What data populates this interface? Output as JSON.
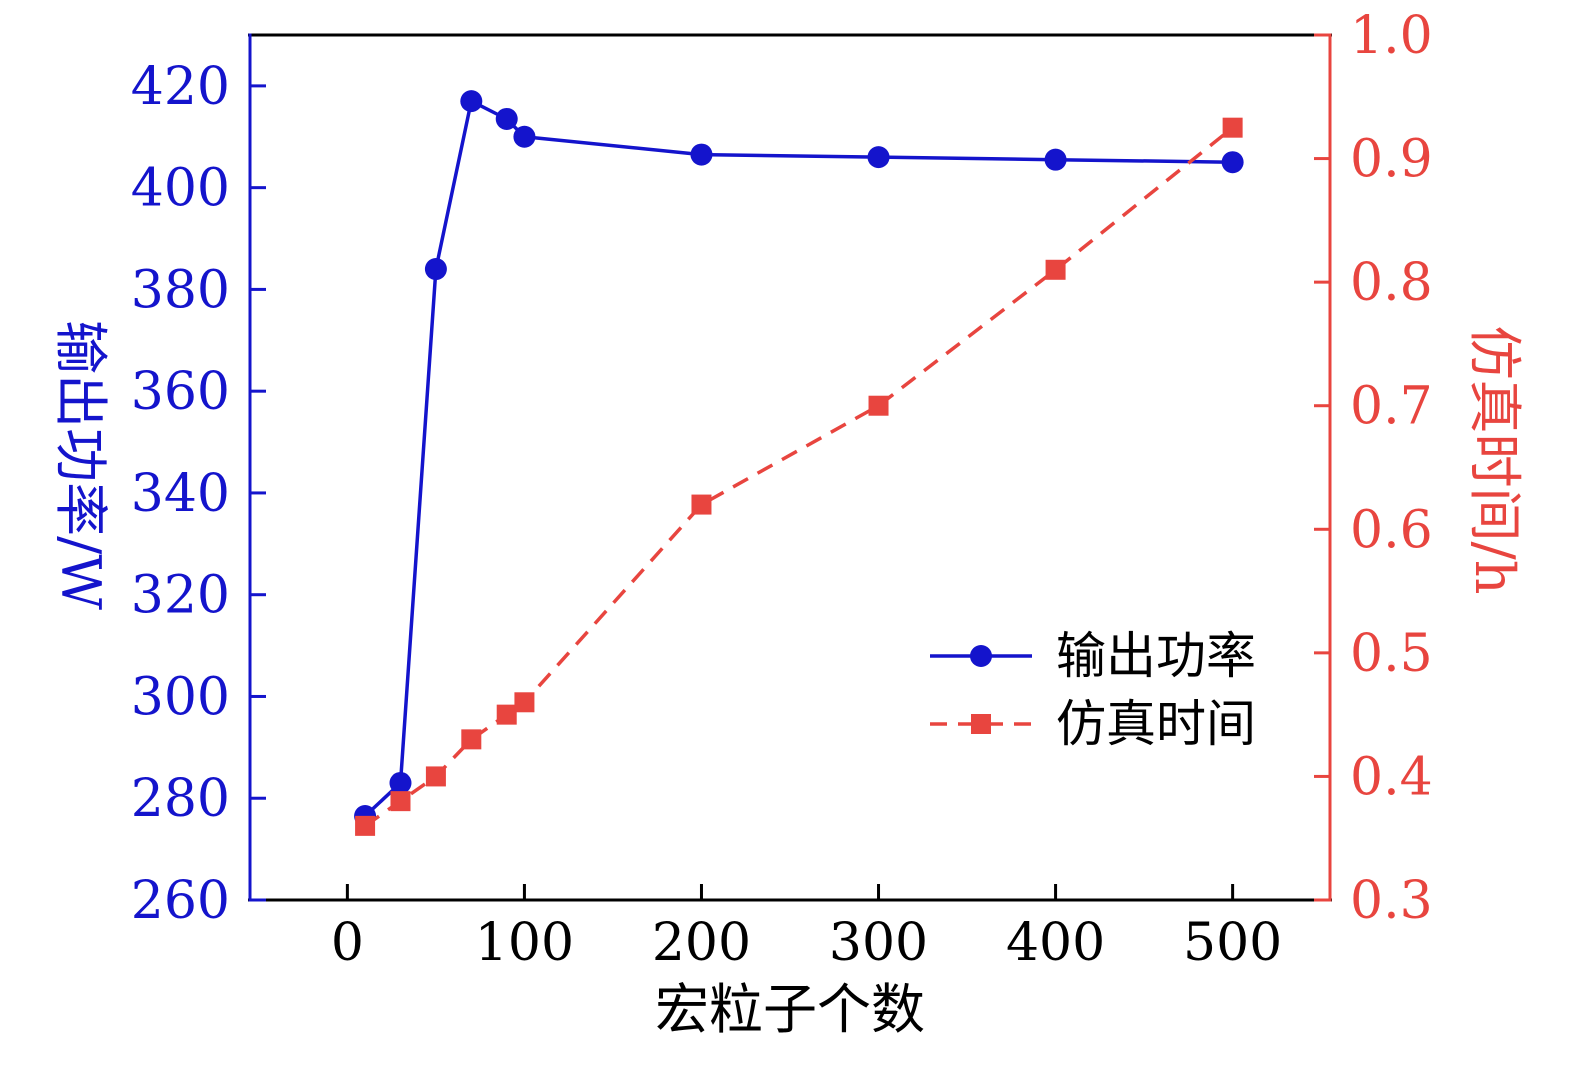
{
  "chart_data": {
    "type": "line",
    "title": "",
    "xlabel": "宏粒子个数",
    "ylabel_left": "输出功率/W",
    "ylabel_right": "仿真时间/h",
    "xlim": [
      -55,
      555
    ],
    "xticks": [
      0,
      100,
      200,
      300,
      400,
      500
    ],
    "ylim_left": [
      260,
      430
    ],
    "yticks_left": [
      260,
      280,
      300,
      320,
      340,
      360,
      380,
      400,
      420
    ],
    "ylim_right": [
      0.3,
      1.0
    ],
    "yticks_right": [
      "0.3",
      "0.4",
      "0.5",
      "0.6",
      "0.7",
      "0.8",
      "0.9",
      "1.0"
    ],
    "x": [
      10,
      30,
      50,
      70,
      90,
      100,
      200,
      300,
      400,
      500
    ],
    "series": [
      {
        "name": "输出功率",
        "axis": "left",
        "color": "#1414cc",
        "marker": "circle",
        "line_style": "solid",
        "values": [
          276.5,
          283,
          384,
          417,
          413.5,
          410,
          406.5,
          406,
          405.5,
          405
        ]
      },
      {
        "name": "仿真时间",
        "axis": "right",
        "color": "#e8453f",
        "marker": "square",
        "line_style": "dashed",
        "values": [
          0.36,
          0.38,
          0.4,
          0.43,
          0.45,
          0.46,
          0.62,
          0.7,
          0.81,
          0.925
        ]
      }
    ],
    "legend": {
      "position": "center-right",
      "entries": [
        "输出功率",
        "仿真时间"
      ]
    },
    "colors": {
      "left_axis": "#1414cc",
      "right_axis": "#e8453f",
      "frame": "#000000",
      "text": "#000000",
      "background": "#ffffff"
    },
    "grid": false
  }
}
